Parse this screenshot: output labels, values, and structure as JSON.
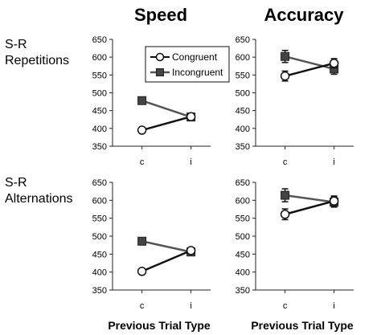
{
  "figure": {
    "col_titles": [
      "Speed",
      "Accuracy"
    ],
    "row_labels": [
      [
        "S-R",
        "Repetitions"
      ],
      [
        "S-R",
        "Alternations"
      ]
    ],
    "x_axis_label": "Previous Trial Type"
  },
  "legend": {
    "congruent": "Congruent",
    "incongruent": "Incongruent"
  },
  "colors": {
    "congruent_line": "#111111",
    "incongruent_line": "#555555",
    "incongruent_marker": "#444444"
  },
  "chart_data": [
    {
      "type": "line",
      "panel": "Speed - S-R Repetitions",
      "categories": [
        "c",
        "i"
      ],
      "ylim": [
        350,
        650
      ],
      "yticks": [
        350,
        400,
        450,
        500,
        550,
        600,
        650
      ],
      "series": [
        {
          "name": "Congruent",
          "values": [
            395,
            433
          ],
          "marker": "open-circle"
        },
        {
          "name": "Incongruent",
          "values": [
            478,
            432
          ],
          "marker": "filled-square"
        }
      ],
      "legend": true,
      "legend_placement": "top-right"
    },
    {
      "type": "line",
      "panel": "Accuracy - S-R Repetitions",
      "categories": [
        "c",
        "i"
      ],
      "ylim": [
        350,
        650
      ],
      "yticks": [
        350,
        400,
        450,
        500,
        550,
        600,
        650
      ],
      "series": [
        {
          "name": "Congruent",
          "values": [
            547,
            583
          ],
          "errors": [
            14,
            13
          ],
          "marker": "open-circle"
        },
        {
          "name": "Incongruent",
          "values": [
            602,
            567
          ],
          "errors": [
            17,
            15
          ],
          "marker": "filled-square"
        }
      ]
    },
    {
      "type": "line",
      "panel": "Speed - S-R Alternations",
      "categories": [
        "c",
        "i"
      ],
      "ylim": [
        350,
        650
      ],
      "yticks": [
        350,
        400,
        450,
        500,
        550,
        600,
        650
      ],
      "series": [
        {
          "name": "Congruent",
          "values": [
            402,
            460
          ],
          "marker": "open-circle"
        },
        {
          "name": "Incongruent",
          "values": [
            486,
            456
          ],
          "marker": "filled-square"
        }
      ]
    },
    {
      "type": "line",
      "panel": "Accuracy - S-R Alternations",
      "categories": [
        "c",
        "i"
      ],
      "ylim": [
        350,
        650
      ],
      "yticks": [
        350,
        400,
        450,
        500,
        550,
        600,
        650
      ],
      "series": [
        {
          "name": "Congruent",
          "values": [
            561,
            598
          ],
          "errors": [
            15,
            14
          ],
          "marker": "open-circle"
        },
        {
          "name": "Incongruent",
          "values": [
            614,
            595
          ],
          "errors": [
            18,
            14
          ],
          "marker": "filled-square"
        }
      ]
    }
  ]
}
